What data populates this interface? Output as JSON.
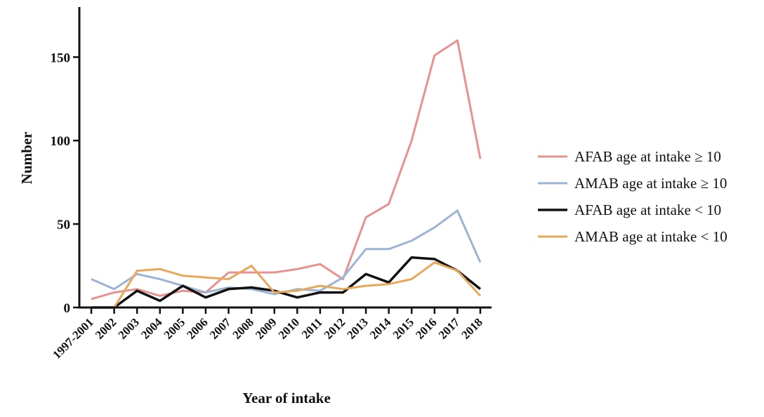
{
  "chart_data": {
    "type": "line",
    "xlabel": "Year of intake",
    "ylabel": "Number",
    "ylim": [
      0,
      180
    ],
    "yticks": [
      0,
      50,
      100,
      150
    ],
    "grid": false,
    "legend_position": "right",
    "categories": [
      "1997-2001",
      "2002",
      "2003",
      "2004",
      "2005",
      "2006",
      "2007",
      "2008",
      "2009",
      "2010",
      "2011",
      "2012",
      "2013",
      "2014",
      "2015",
      "2016",
      "2017",
      "2018"
    ],
    "series": [
      {
        "name": "AFAB age at intake ≥ 10",
        "color": "#e8918f",
        "values": [
          5,
          9,
          11,
          7,
          10,
          9,
          21,
          21,
          21,
          23,
          26,
          17,
          54,
          62,
          100,
          151,
          160,
          89
        ]
      },
      {
        "name": "AMAB age at intake ≥ 10",
        "color": "#9db3d6",
        "values": [
          17,
          11,
          20,
          17,
          13,
          9,
          12,
          11,
          8,
          11,
          10,
          18,
          35,
          35,
          40,
          48,
          58,
          27
        ]
      },
      {
        "name": "AFAB age at intake < 10",
        "color": "#111111",
        "values": [
          0,
          0,
          10,
          4,
          13,
          6,
          11,
          12,
          10,
          6,
          9,
          9,
          20,
          15,
          30,
          29,
          22,
          11
        ]
      },
      {
        "name": "AMAB age at intake < 10",
        "color": "#e8a85c",
        "values": [
          0,
          0,
          22,
          23,
          19,
          18,
          17,
          25,
          9,
          10,
          13,
          11,
          13,
          14,
          17,
          27,
          22,
          7
        ]
      }
    ]
  }
}
